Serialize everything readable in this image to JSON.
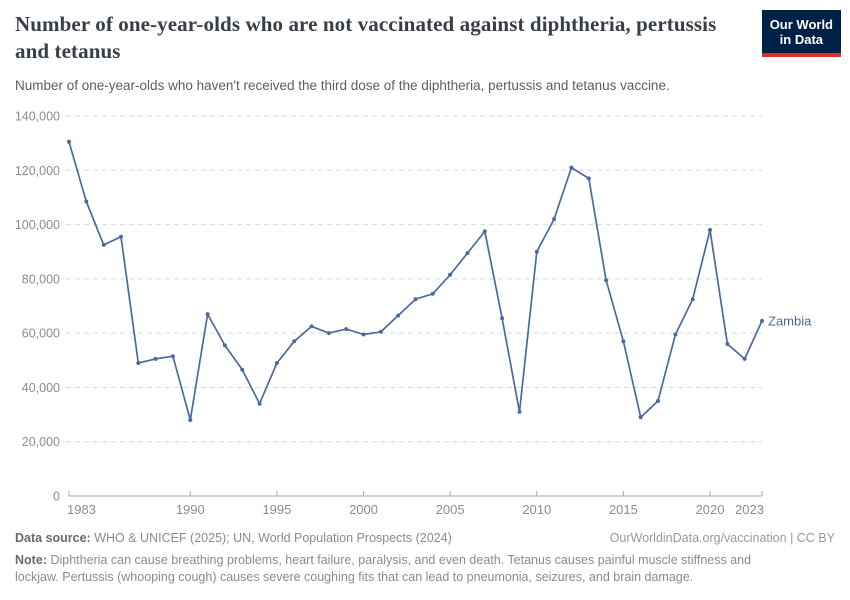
{
  "header": {
    "title": "Number of one-year-olds who are not vaccinated against diphtheria, pertussis and tetanus",
    "subtitle": "Number of one-year-olds who haven't received the third dose of the diphtheria, pertussis and tetanus vaccine.",
    "logo": {
      "line1": "Our World",
      "line2": "in Data"
    }
  },
  "chart_data": {
    "type": "line",
    "title": "Number of one-year-olds who are not vaccinated against diphtheria, pertussis and tetanus",
    "xlabel": "",
    "ylabel": "",
    "xlim": [
      1983,
      2023
    ],
    "ylim": [
      0,
      140000
    ],
    "x_ticks": [
      1983,
      1990,
      1995,
      2000,
      2005,
      2010,
      2015,
      2020,
      2023
    ],
    "y_ticks": [
      0,
      20000,
      40000,
      60000,
      80000,
      100000,
      120000,
      140000
    ],
    "grid": "horizontal-dashed",
    "legend_position": "end-of-line-label",
    "series": [
      {
        "name": "Zambia",
        "color": "#4C6A9C",
        "x": [
          1983,
          1984,
          1985,
          1986,
          1987,
          1988,
          1989,
          1990,
          1991,
          1992,
          1993,
          1994,
          1995,
          1996,
          1997,
          1998,
          1999,
          2000,
          2001,
          2002,
          2003,
          2004,
          2005,
          2006,
          2007,
          2008,
          2009,
          2010,
          2011,
          2012,
          2013,
          2014,
          2015,
          2016,
          2017,
          2018,
          2019,
          2020,
          2021,
          2022,
          2023
        ],
        "values": [
          130500,
          108500,
          92500,
          95500,
          49000,
          50500,
          51500,
          28000,
          67000,
          55500,
          46500,
          34000,
          49000,
          57000,
          62500,
          60000,
          61500,
          59500,
          60500,
          66500,
          72500,
          74500,
          81500,
          89500,
          97500,
          65500,
          31000,
          90000,
          102000,
          121000,
          117000,
          79500,
          57000,
          29000,
          35000,
          59500,
          72500,
          98000,
          56000,
          50500,
          64500
        ]
      }
    ]
  },
  "footer": {
    "data_source_label": "Data source:",
    "data_source": "WHO & UNICEF (2025); UN, World Population Prospects (2024)",
    "link": "OurWorldinData.org/vaccination | CC BY",
    "note_label": "Note:",
    "note": "Diphtheria can cause breathing problems, heart failure, paralysis, and even death. Tetanus causes painful muscle stiffness and lockjaw. Pertussis (whooping cough) causes severe coughing fits that can lead to pneumonia, seizures, and brain damage."
  },
  "colors": {
    "line": "#4C6A9C",
    "grid": "#d9d9d9",
    "axis": "#a9a9a9",
    "tick_label": "#8c8c8c",
    "logo_bg": "#002147",
    "logo_red": "#DB3025"
  }
}
